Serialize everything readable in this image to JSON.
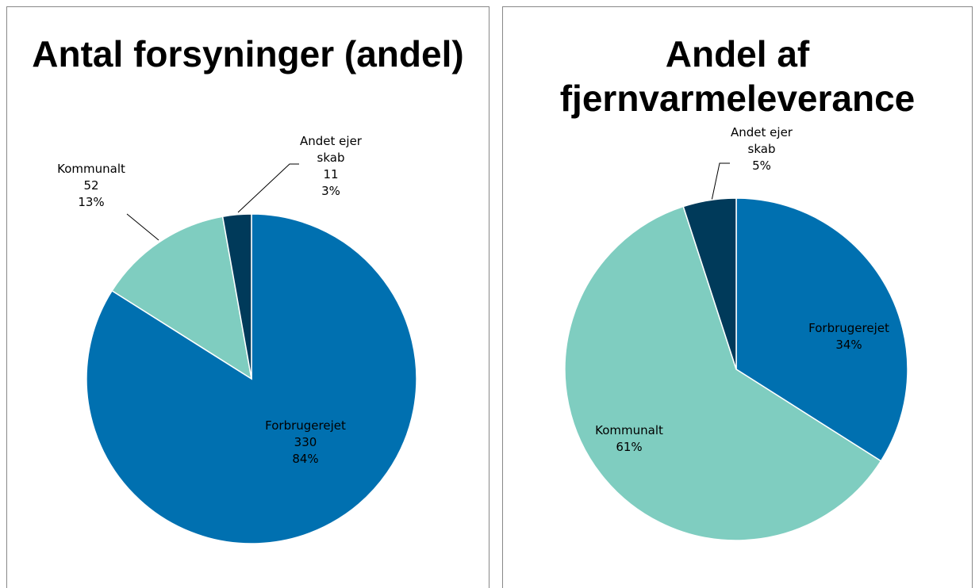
{
  "chart_data": [
    {
      "type": "pie",
      "title": "Antal forsyninger (andel)",
      "categories": [
        "Forbrugerejet",
        "Kommunalt",
        "Andet ejerskab"
      ],
      "values": [
        330,
        52,
        11
      ],
      "percent_labels": [
        "84%",
        "13%",
        "3%"
      ],
      "colors": [
        "#0070b0",
        "#7fcdc0",
        "#003a5a"
      ]
    },
    {
      "type": "pie",
      "title": "Andel af fjernvarmeleverance",
      "categories": [
        "Forbrugerejet",
        "Kommunalt",
        "Andet ejerskab"
      ],
      "values": [
        34,
        61,
        5
      ],
      "value_labels": [
        "34%",
        "61%",
        "5%"
      ],
      "colors": [
        "#0070b0",
        "#7fcdc0",
        "#003a5a"
      ]
    }
  ]
}
